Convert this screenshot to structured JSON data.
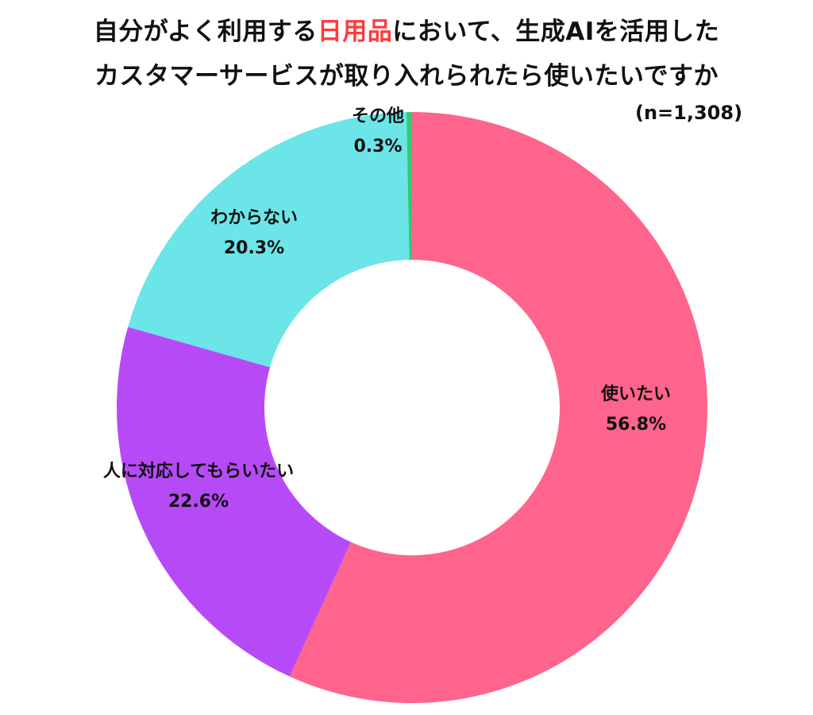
{
  "title": {
    "line1_before": "自分がよく利用する",
    "line1_highlight": "日用品",
    "line1_after": "において、生成AIを活用した",
    "line2": "カスタマーサービスが取り入れられたら使いたいですか",
    "highlight_color": "#ff3b3b"
  },
  "sample_size": "(n=1,308)",
  "chart_data": {
    "type": "pie",
    "donut": true,
    "start_angle_deg": 0,
    "direction": "clockwise",
    "slices": [
      {
        "label": "使いたい",
        "value": 56.8,
        "value_text": "56.8%",
        "color": "#ff648c"
      },
      {
        "label": "人に対応してもらいたい",
        "value": 22.6,
        "value_text": "22.6%",
        "color": "#b74af7"
      },
      {
        "label": "わからない",
        "value": 20.3,
        "value_text": "20.3%",
        "color": "#6ce5e8"
      },
      {
        "label": "その他",
        "value": 0.3,
        "value_text": "0.3%",
        "color": "#2ecc71"
      }
    ]
  }
}
